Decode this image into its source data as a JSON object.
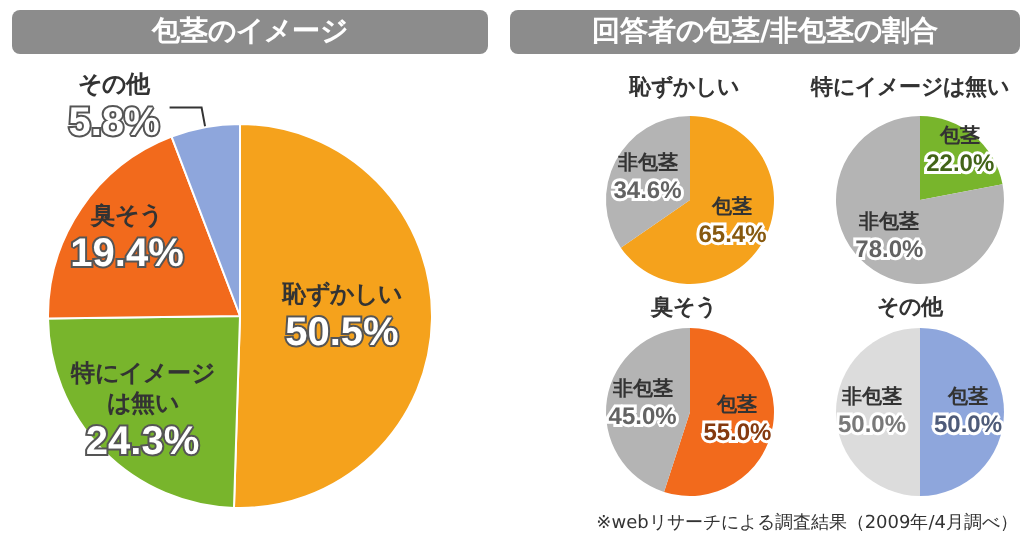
{
  "chart_data": [
    {
      "type": "pie",
      "title": "包茎のイメージ",
      "categories": [
        "恥ずかしい",
        "特にイメージは無い",
        "臭そう",
        "その他"
      ],
      "values": [
        50.5,
        24.3,
        19.4,
        5.8
      ],
      "value_labels": [
        "50.5%",
        "24.3%",
        "19.4%",
        "5.8%"
      ],
      "colors": [
        "#f5a21c",
        "#78b52c",
        "#f26a1c",
        "#8ea6dc"
      ],
      "legend": false
    },
    {
      "type": "pie",
      "title": "恥ずかしい",
      "annotations": [
        "回答者の包茎/非包茎の割合"
      ],
      "categories": [
        "包茎",
        "非包茎"
      ],
      "values": [
        65.4,
        34.6
      ],
      "value_labels": [
        "65.4%",
        "34.6%"
      ],
      "colors": [
        "#f5a21c",
        "#b4b4b4"
      ],
      "legend": false
    },
    {
      "type": "pie",
      "title": "特にイメージは無い",
      "categories": [
        "包茎",
        "非包茎"
      ],
      "values": [
        22.0,
        78.0
      ],
      "value_labels": [
        "22.0%",
        "78.0%"
      ],
      "colors": [
        "#78b52c",
        "#b4b4b4"
      ],
      "legend": false
    },
    {
      "type": "pie",
      "title": "臭そう",
      "categories": [
        "包茎",
        "非包茎"
      ],
      "values": [
        55.0,
        45.0
      ],
      "value_labels": [
        "55.0%",
        "45.0%"
      ],
      "colors": [
        "#f26a1c",
        "#b4b4b4"
      ],
      "legend": false
    },
    {
      "type": "pie",
      "title": "その他",
      "annotations": [
        "※webリサーチによる調査結果（2009年/4月調べ）"
      ],
      "categories": [
        "包茎",
        "非包茎"
      ],
      "values": [
        50.0,
        50.0
      ],
      "value_labels": [
        "50.0%",
        "50.0%"
      ],
      "colors": [
        "#8ea6dc",
        "#dcdcdc"
      ],
      "legend": false
    }
  ]
}
